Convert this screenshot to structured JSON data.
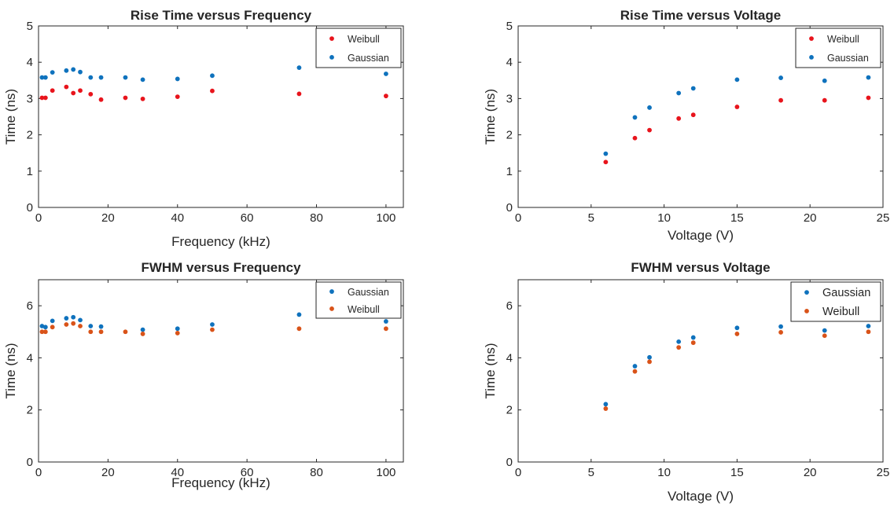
{
  "chart_data": [
    {
      "type": "scatter",
      "title": "Rise Time versus Frequency",
      "xlabel": "Frequency (kHz)",
      "ylabel": "Time (ns)",
      "xlim": [
        0,
        105
      ],
      "ylim": [
        0,
        5
      ],
      "xticks": [
        0,
        20,
        40,
        60,
        80,
        100
      ],
      "yticks": [
        0,
        1,
        2,
        3,
        4,
        5
      ],
      "legend_position": "top-right",
      "grid": false,
      "series": [
        {
          "name": "Weibull",
          "color": "#e8141c",
          "x": [
            1,
            2,
            4,
            8,
            10,
            12,
            15,
            18,
            25,
            30,
            40,
            50,
            75,
            100
          ],
          "y": [
            3.02,
            3.02,
            3.22,
            3.32,
            3.15,
            3.22,
            3.12,
            2.97,
            3.02,
            2.99,
            3.05,
            3.21,
            3.13,
            3.07
          ]
        },
        {
          "name": "Gaussian",
          "color": "#0f72bd",
          "x": [
            1,
            2,
            4,
            8,
            10,
            12,
            15,
            18,
            25,
            30,
            40,
            50,
            75,
            100
          ],
          "y": [
            3.58,
            3.58,
            3.72,
            3.77,
            3.8,
            3.73,
            3.58,
            3.58,
            3.58,
            3.52,
            3.54,
            3.63,
            3.85,
            3.68
          ]
        }
      ]
    },
    {
      "type": "scatter",
      "title": "Rise Time versus Voltage",
      "xlabel": "Voltage (V)",
      "ylabel": "Time (ns)",
      "xlim": [
        0,
        25
      ],
      "ylim": [
        0,
        5
      ],
      "xticks": [
        0,
        5,
        10,
        15,
        20,
        25
      ],
      "yticks": [
        0,
        1,
        2,
        3,
        4,
        5
      ],
      "legend_position": "top-right",
      "grid": false,
      "series": [
        {
          "name": "Weibull",
          "color": "#e8141c",
          "x": [
            6,
            8,
            9,
            11,
            12,
            15,
            18,
            21,
            24
          ],
          "y": [
            1.25,
            1.91,
            2.13,
            2.45,
            2.55,
            2.77,
            2.95,
            2.95,
            3.02
          ]
        },
        {
          "name": "Gaussian",
          "color": "#0f72bd",
          "x": [
            6,
            8,
            9,
            11,
            12,
            15,
            18,
            21,
            24
          ],
          "y": [
            1.48,
            2.48,
            2.75,
            3.15,
            3.28,
            3.52,
            3.57,
            3.49,
            3.58
          ]
        }
      ]
    },
    {
      "type": "scatter",
      "title": "FWHM versus Frequency",
      "xlabel": "Frequency (kHz)",
      "ylabel": "Time (ns)",
      "xlim": [
        0,
        105
      ],
      "ylim": [
        0,
        7
      ],
      "xticks": [
        0,
        20,
        40,
        60,
        80,
        100
      ],
      "yticks": [
        0,
        2,
        4,
        6
      ],
      "legend_position": "top-right",
      "grid": false,
      "series": [
        {
          "name": "Gaussian",
          "color": "#0f72bd",
          "x": [
            1,
            2,
            4,
            8,
            10,
            12,
            15,
            18,
            30,
            40,
            50,
            75,
            100
          ],
          "y": [
            5.22,
            5.18,
            5.42,
            5.52,
            5.56,
            5.45,
            5.22,
            5.2,
            5.08,
            5.12,
            5.28,
            5.66,
            5.4
          ]
        },
        {
          "name": "Weibull",
          "color": "#d95319",
          "x": [
            1,
            2,
            4,
            8,
            10,
            12,
            15,
            18,
            25,
            30,
            40,
            50,
            75,
            100
          ],
          "y": [
            5.0,
            5.0,
            5.18,
            5.28,
            5.32,
            5.22,
            5.0,
            5.0,
            5.0,
            4.92,
            4.95,
            5.08,
            5.12,
            5.12
          ]
        }
      ]
    },
    {
      "type": "scatter",
      "title": "FWHM versus Voltage",
      "xlabel": "Voltage (V)",
      "ylabel": "Time (ns)",
      "xlim": [
        0,
        25
      ],
      "ylim": [
        0,
        7
      ],
      "xticks": [
        0,
        5,
        10,
        15,
        20,
        25
      ],
      "yticks": [
        0,
        2,
        4,
        6
      ],
      "legend_position": "top-right",
      "grid": false,
      "series": [
        {
          "name": "Gaussian",
          "color": "#0f72bd",
          "x": [
            6,
            8,
            9,
            11,
            12,
            15,
            18,
            21,
            24
          ],
          "y": [
            2.22,
            3.68,
            4.02,
            4.62,
            4.78,
            5.15,
            5.2,
            5.05,
            5.22
          ]
        },
        {
          "name": "Weibull",
          "color": "#d95319",
          "x": [
            6,
            8,
            9,
            11,
            12,
            15,
            18,
            21,
            24
          ],
          "y": [
            2.05,
            3.48,
            3.85,
            4.4,
            4.58,
            4.92,
            4.98,
            4.85,
            5.0
          ]
        }
      ]
    }
  ]
}
